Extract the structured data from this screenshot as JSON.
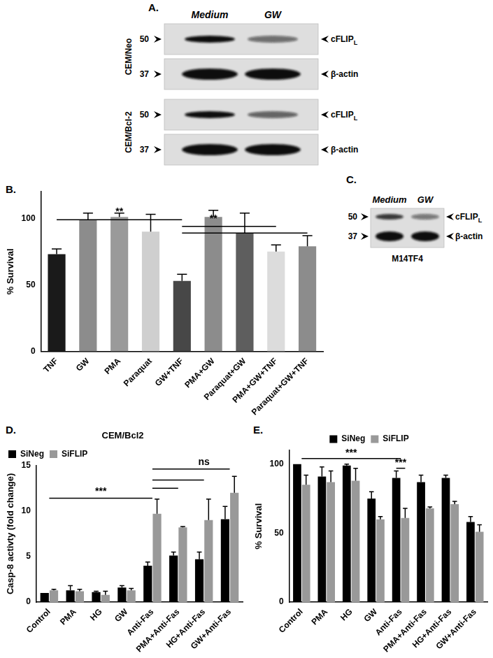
{
  "blots": [
    {
      "panel": "A.",
      "lanes": [
        "Medium",
        "GW"
      ],
      "groups": [
        {
          "name": "CEM/Neo",
          "rows": [
            {
              "label": "cFLIP",
              "subscript": "L",
              "marker": 50,
              "intensity": [
                1.0,
                0.55
              ]
            },
            {
              "label": "β-actin",
              "marker": 37,
              "intensity": [
                1.0,
                1.0
              ]
            }
          ]
        },
        {
          "name": "CEM/Bcl-2",
          "rows": [
            {
              "label": "cFLIP",
              "subscript": "L",
              "marker": 50,
              "intensity": [
                1.0,
                0.6
              ]
            },
            {
              "label": "β-actin",
              "marker": 37,
              "intensity": [
                1.0,
                1.0
              ]
            }
          ]
        }
      ]
    },
    {
      "panel": "C.",
      "lanes": [
        "Medium",
        "GW"
      ],
      "groups": [
        {
          "name": "M14TF4",
          "rows": [
            {
              "label": "cFLIP",
              "subscript": "L",
              "marker": 50,
              "intensity": [
                0.8,
                0.5
              ]
            },
            {
              "label": "β-actin",
              "marker": 37,
              "intensity": [
                1.0,
                1.0
              ]
            }
          ]
        }
      ]
    }
  ],
  "chart_data": [
    {
      "panel": "B.",
      "type": "bar",
      "y_label": "% Survival",
      "categories": [
        "TNF",
        "GW",
        "PMA",
        "Paraquat",
        "GW+TNF",
        "PMA+GW",
        "Paraquat+GW",
        "PMA+GW+TNF",
        "Paraquat+GW+TNF"
      ],
      "values": [
        73,
        99,
        101,
        90,
        53,
        101,
        89,
        75,
        79
      ],
      "errors": [
        4,
        5,
        3,
        13,
        5,
        5,
        15,
        5,
        8
      ],
      "colors": [
        "#1a1a1a",
        "#8c8c8c",
        "#9a9a9a",
        "#cfcfcf",
        "#474747",
        "#8c8c8c",
        "#5e5e5e",
        "#dcdcdc",
        "#8c8c8c"
      ],
      "ylim": [
        0,
        120
      ],
      "yticks": [
        0,
        50,
        100
      ],
      "grid": false,
      "brackets": [
        {
          "label": "**",
          "label_x": "PMA",
          "label_y": 101,
          "lines": [
            {
              "from": "TNF",
              "to": "GW+TNF",
              "y": 99
            }
          ]
        },
        {
          "label": "**",
          "label_x": "PMA+GW",
          "label_y": 96,
          "lines": [
            {
              "from": "GW+TNF",
              "to": "PMA+GW+TNF",
              "y": 94
            },
            {
              "from": "GW+TNF",
              "to": "Paraquat+GW+TNF",
              "y": 89
            }
          ]
        }
      ]
    },
    {
      "panel": "D.",
      "type": "bar",
      "title": "CEM/Bcl2",
      "y_label": "Casp-8 activty (fold change)",
      "categories": [
        "Control",
        "PMA",
        "HG",
        "GW",
        "Anti-Fas",
        "PMA+Anti-Fas",
        "HG+Anti-Fas",
        "GW+Anti-Fas"
      ],
      "series": [
        {
          "name": "SiNeg",
          "color": "#000000",
          "values": [
            1.0,
            1.3,
            1.1,
            1.6,
            4.0,
            5.1,
            4.7,
            9.1
          ],
          "errors": [
            0,
            0.5,
            0.1,
            0.2,
            0.4,
            0.4,
            0.8,
            1.4
          ]
        },
        {
          "name": "SiFLIP",
          "color": "#999999",
          "values": [
            1.3,
            1.2,
            0.8,
            1.3,
            9.7,
            8.2,
            9.0,
            12.0
          ],
          "errors": [
            0.1,
            0.2,
            0.4,
            0.2,
            1.6,
            0.1,
            2.3,
            1.8
          ]
        }
      ],
      "ylim": [
        0,
        15
      ],
      "yticks": [
        0,
        5,
        10,
        15
      ],
      "grid": false,
      "legend": "top-left",
      "brackets": [
        {
          "label": "***",
          "label_x": "HG",
          "label_y": 11.6,
          "lines": [
            {
              "from": "Control",
              "to": "Anti-Fas",
              "y": 11.4
            }
          ]
        },
        {
          "label": "ns",
          "label_x": "HG+Anti-Fas",
          "label_y": 14.8,
          "lines": [
            {
              "from": "Anti-Fas",
              "to": "GW+Anti-Fas",
              "y": 14.6
            },
            {
              "from": "Anti-Fas",
              "to": "HG+Anti-Fas",
              "y": 13.4
            },
            {
              "from": "Anti-Fas",
              "to": "PMA+Anti-Fas",
              "y": 12.5
            }
          ]
        }
      ]
    },
    {
      "panel": "E.",
      "type": "bar",
      "y_label": "% Survival",
      "categories": [
        "Control",
        "PMA",
        "HG",
        "GW",
        "Anti-Fas",
        "PMA+Anti-Fas",
        "HG+Anti-Fas",
        "GW+Anti-Fas"
      ],
      "series": [
        {
          "name": "SiNeg",
          "color": "#000000",
          "values": [
            100,
            91,
            99,
            75,
            90,
            87,
            90,
            58
          ],
          "errors": [
            0,
            7,
            1,
            5,
            5,
            5,
            2,
            4
          ]
        },
        {
          "name": "SiFLIP",
          "color": "#999999",
          "values": [
            85,
            87,
            88,
            60,
            61,
            68,
            71,
            51
          ],
          "errors": [
            7,
            8,
            9,
            2,
            7,
            1,
            2,
            5
          ]
        }
      ],
      "ylim": [
        0,
        110
      ],
      "yticks": [
        0,
        50,
        100
      ],
      "grid": false,
      "legend": "top",
      "brackets": [
        {
          "label": "***",
          "label_x": "HG",
          "label_y": 104.5,
          "lines": [
            {
              "from": "Control",
              "to": "Anti-Fas",
              "y": 104
            }
          ]
        },
        {
          "label": "***",
          "label_x": "Anti-Fas",
          "label_y": 97.5,
          "lines": [
            {
              "from": "Anti-Fas",
              "from_series": "SiNeg",
              "to": "Anti-Fas",
              "to_series": "SiFLIP",
              "y": 97
            }
          ]
        }
      ]
    }
  ]
}
